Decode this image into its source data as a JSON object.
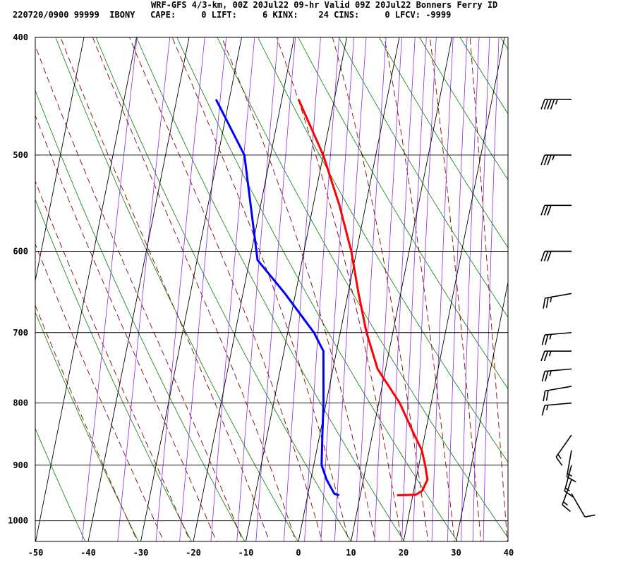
{
  "header": {
    "title": "WRF-GFS 4/3-km, 00Z 20Jul22 09-hr Valid 09Z 20Jul22 Bonners Ferry ID",
    "info": "220720/0900 99999  IBONY   CAPE:     0 LIFT:     6 KINX:    24 CINS:     0 LFCV: -9999"
  },
  "chart_data": {
    "type": "line",
    "subtype": "skew-T log-p sounding",
    "title": "WRF-GFS 4/3-km, 00Z 20Jul22 09-hr Valid 09Z 20Jul22 Bonners Ferry ID",
    "x_ticks": [
      -50,
      -40,
      -30,
      -20,
      -10,
      0,
      10,
      20,
      30,
      40
    ],
    "y_ticks": [
      400,
      500,
      600,
      700,
      800,
      900,
      1000
    ],
    "xlim": [
      -50,
      40
    ],
    "ylim_pressure": [
      1040,
      400
    ],
    "y_scale": "log",
    "grid": true,
    "series": [
      {
        "color": "#ff0000",
        "points": [
          {
            "p": 953,
            "t": 17
          },
          {
            "p": 952,
            "t": 20.5
          },
          {
            "p": 945,
            "t": 21.6
          },
          {
            "p": 925,
            "t": 22.2
          },
          {
            "p": 900,
            "t": 21.2
          },
          {
            "p": 875,
            "t": 20.0
          },
          {
            "p": 850,
            "t": 18.0
          },
          {
            "p": 800,
            "t": 14.0
          },
          {
            "p": 750,
            "t": 8.5
          },
          {
            "p": 700,
            "t": 5.0
          },
          {
            "p": 650,
            "t": 2.0
          },
          {
            "p": 600,
            "t": -1.0
          },
          {
            "p": 550,
            "t": -5.0
          },
          {
            "p": 500,
            "t": -10.0
          },
          {
            "p": 450,
            "t": -16.8
          }
        ]
      },
      {
        "color": "#0000ff",
        "points": [
          {
            "p": 953,
            "td": 6.0
          },
          {
            "p": 950,
            "td": 5.0
          },
          {
            "p": 925,
            "td": 3.0
          },
          {
            "p": 900,
            "td": 1.5
          },
          {
            "p": 850,
            "td": 0.5
          },
          {
            "p": 800,
            "td": -0.5
          },
          {
            "p": 725,
            "td": -2.5
          },
          {
            "p": 700,
            "td": -5.0
          },
          {
            "p": 650,
            "td": -12.0
          },
          {
            "p": 610,
            "td": -18.5
          },
          {
            "p": 500,
            "td": -25.0
          },
          {
            "p": 450,
            "td": -32.5
          }
        ]
      }
    ],
    "background_lines": {
      "isotherms_color": "#000000",
      "dry_adiabats_color": "#008000",
      "moist_adiabats_color": "#8b0000",
      "mixing_ratio_color": "#8a2be2"
    },
    "wind_barbs": [
      {
        "p": 450,
        "dir_deg": 270,
        "speed_kt": 45
      },
      {
        "p": 500,
        "dir_deg": 270,
        "speed_kt": 35
      },
      {
        "p": 550,
        "dir_deg": 270,
        "speed_kt": 30
      },
      {
        "p": 600,
        "dir_deg": 270,
        "speed_kt": 30
      },
      {
        "p": 650,
        "dir_deg": 260,
        "speed_kt": 25
      },
      {
        "p": 700,
        "dir_deg": 265,
        "speed_kt": 25
      },
      {
        "p": 725,
        "dir_deg": 270,
        "speed_kt": 25
      },
      {
        "p": 750,
        "dir_deg": 265,
        "speed_kt": 25
      },
      {
        "p": 775,
        "dir_deg": 260,
        "speed_kt": 20
      },
      {
        "p": 800,
        "dir_deg": 265,
        "speed_kt": 15
      },
      {
        "p": 850,
        "dir_deg": 215,
        "speed_kt": 15
      },
      {
        "p": 875,
        "dir_deg": 190,
        "speed_kt": 15
      },
      {
        "p": 900,
        "dir_deg": 195,
        "speed_kt": 15
      },
      {
        "p": 925,
        "dir_deg": 200,
        "speed_kt": 15
      },
      {
        "p": 950,
        "dir_deg": 150,
        "speed_kt": 10
      }
    ]
  }
}
